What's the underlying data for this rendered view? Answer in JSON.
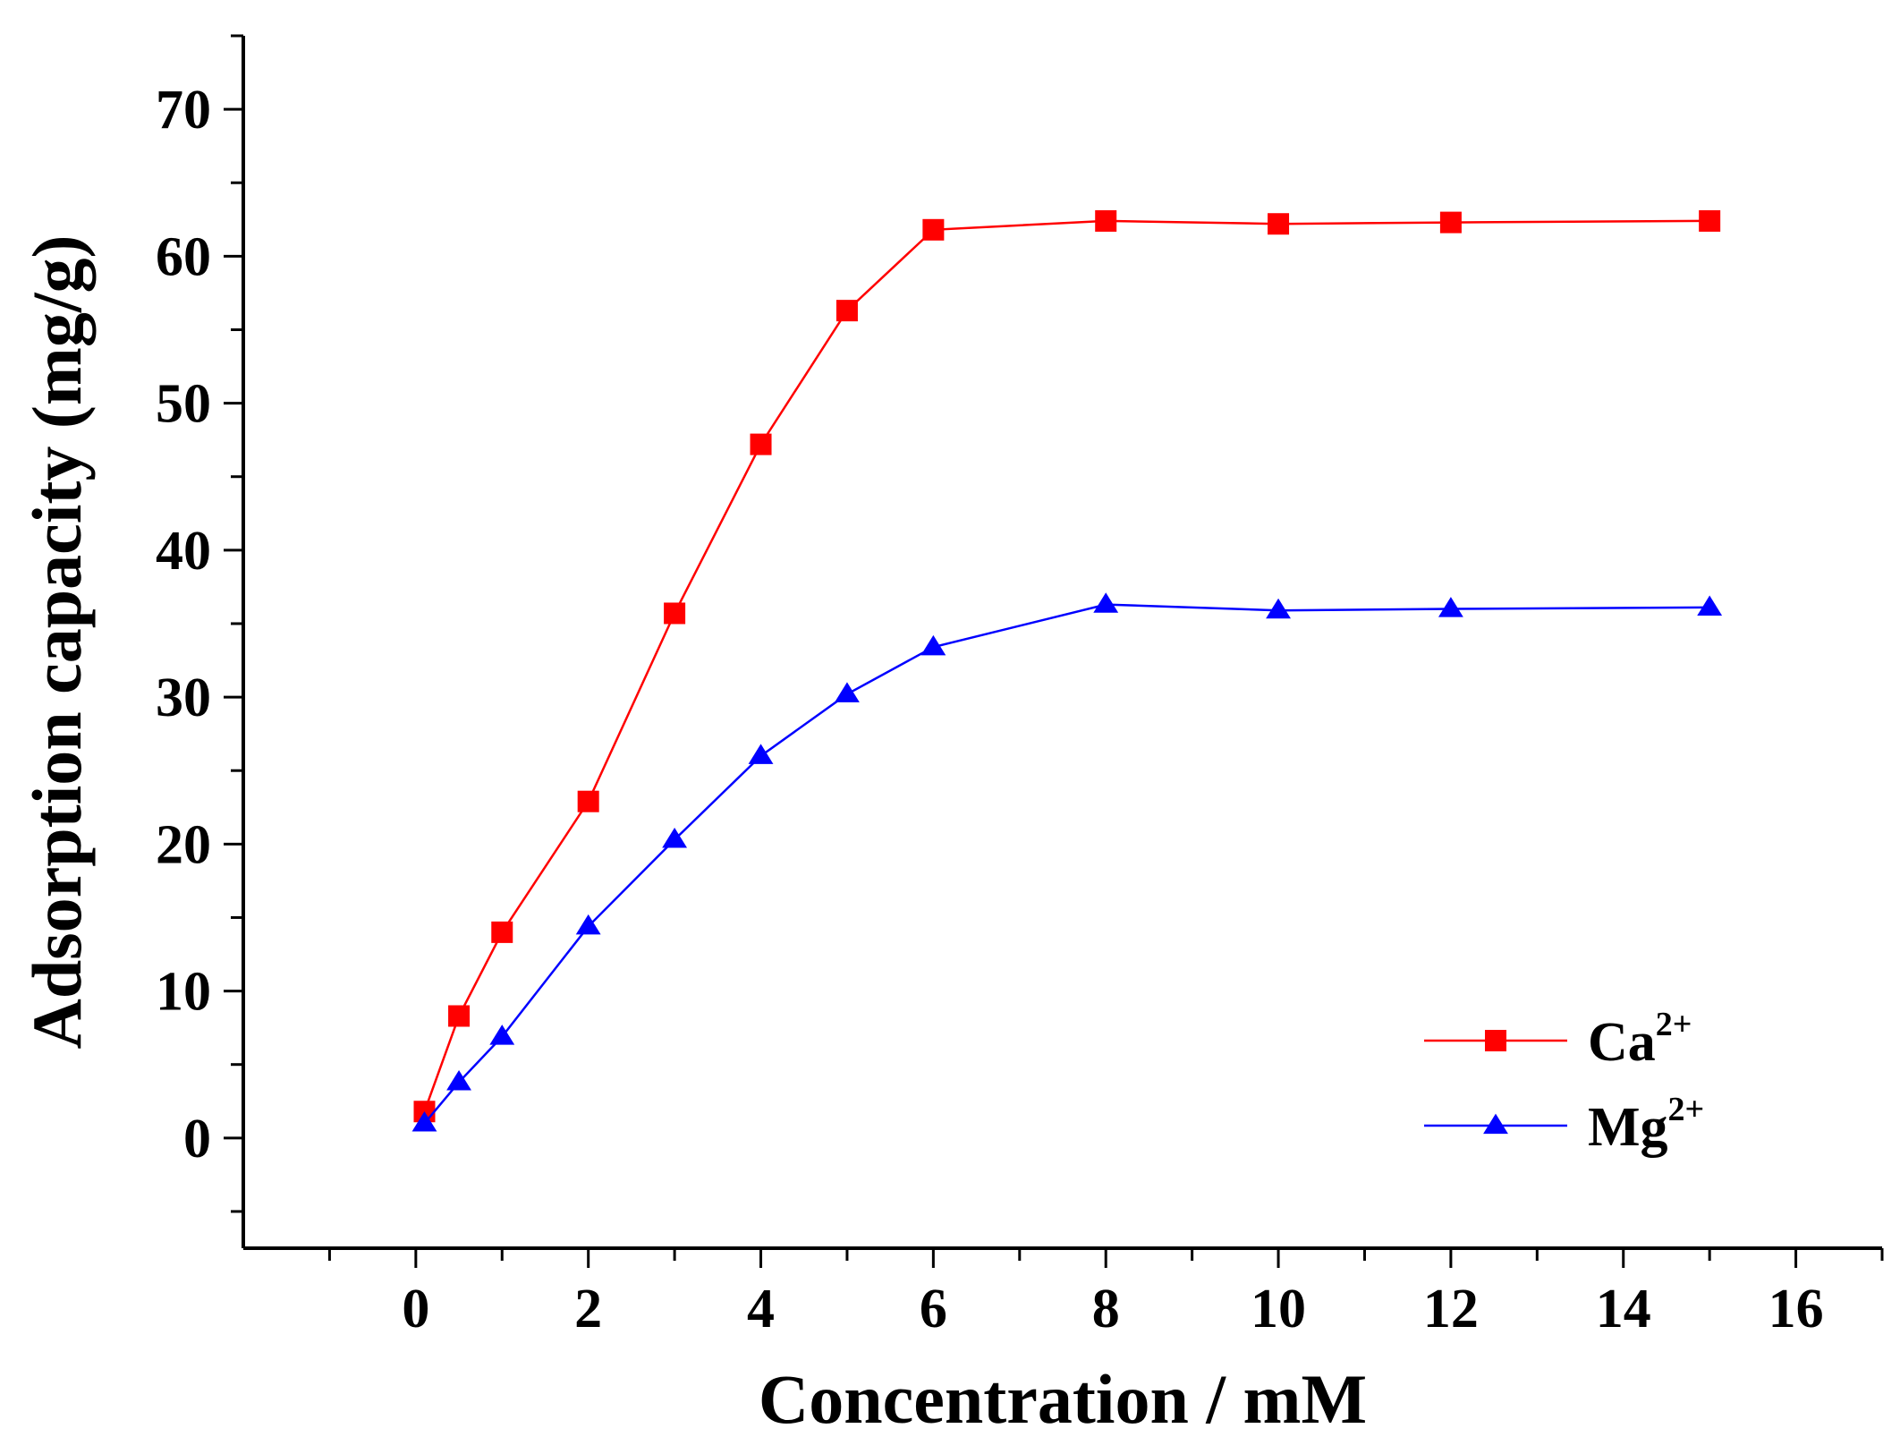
{
  "chart_data": {
    "type": "line",
    "title": "",
    "xlabel": "Concentration / mM",
    "ylabel": "Adsorption capacity (mg/g)",
    "xlim": [
      -2,
      17
    ],
    "ylim": [
      -7.5,
      75
    ],
    "x_ticks": [
      0,
      2,
      4,
      6,
      8,
      10,
      12,
      14,
      16
    ],
    "y_ticks": [
      0,
      10,
      20,
      30,
      40,
      50,
      60,
      70
    ],
    "x_tick_labels": [
      "0",
      "2",
      "4",
      "6",
      "8",
      "10",
      "12",
      "14",
      "16"
    ],
    "y_tick_labels": [
      "0",
      "10",
      "20",
      "30",
      "40",
      "50",
      "60",
      "70"
    ],
    "grid": false,
    "legend_position": "bottom-right",
    "series": [
      {
        "name": "Ca",
        "charge": "2+",
        "color": "#ff0000",
        "marker": "square",
        "points": [
          {
            "x": 0.1,
            "y": 1.8
          },
          {
            "x": 0.5,
            "y": 8.3
          },
          {
            "x": 1,
            "y": 14.0
          },
          {
            "x": 2,
            "y": 22.9
          },
          {
            "x": 3,
            "y": 35.7
          },
          {
            "x": 4,
            "y": 47.2
          },
          {
            "x": 5,
            "y": 56.3
          },
          {
            "x": 6,
            "y": 61.8
          },
          {
            "x": 8,
            "y": 62.4
          },
          {
            "x": 10,
            "y": 62.2
          },
          {
            "x": 12,
            "y": 62.3
          },
          {
            "x": 15,
            "y": 62.4
          }
        ]
      },
      {
        "name": "Mg",
        "charge": "2+",
        "color": "#0000ff",
        "marker": "triangle",
        "points": [
          {
            "x": 0.1,
            "y": 1.0
          },
          {
            "x": 0.5,
            "y": 3.8
          },
          {
            "x": 1,
            "y": 6.9
          },
          {
            "x": 2,
            "y": 14.4
          },
          {
            "x": 3,
            "y": 20.3
          },
          {
            "x": 4,
            "y": 26.0
          },
          {
            "x": 5,
            "y": 30.2
          },
          {
            "x": 6,
            "y": 33.4
          },
          {
            "x": 8,
            "y": 36.3
          },
          {
            "x": 10,
            "y": 35.9
          },
          {
            "x": 12,
            "y": 36.0
          },
          {
            "x": 15,
            "y": 36.1
          }
        ]
      }
    ]
  }
}
